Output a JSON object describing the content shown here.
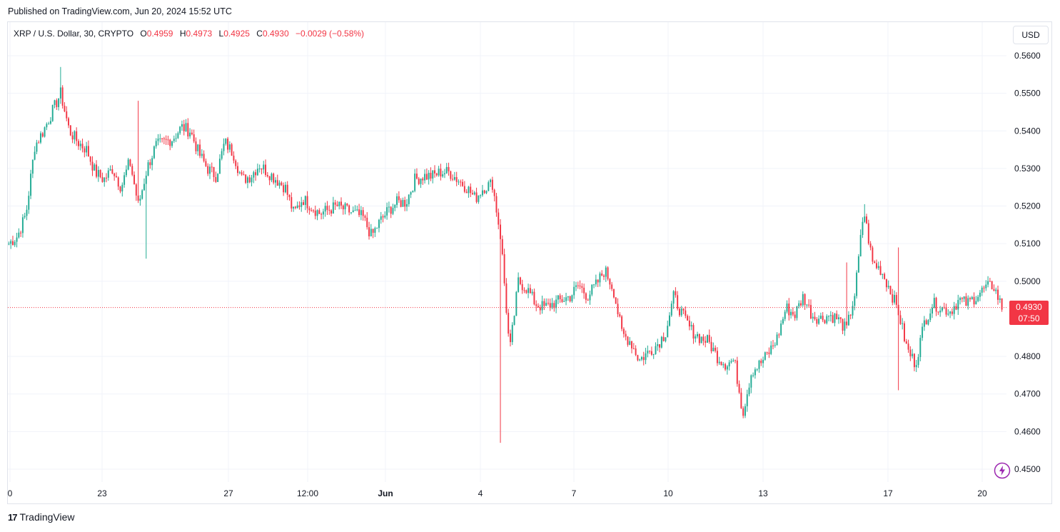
{
  "header": {
    "published": "Published on TradingView.com, Jun 20, 2024 15:52 UTC"
  },
  "legend": {
    "symbol": "XRP / U.S. Dollar, 30, CRYPTO",
    "o_label": "O",
    "o_value": "0.4959",
    "h_label": "H",
    "h_value": "0.4973",
    "l_label": "L",
    "l_value": "0.4925",
    "c_label": "C",
    "c_value": "0.4930",
    "change": "−0.0029 (−0.58%)"
  },
  "currency_button": "USD",
  "last_price": {
    "price": "0.4930",
    "countdown": "07:50"
  },
  "footer": {
    "brand": "TradingView",
    "mark": "17"
  },
  "colors": {
    "up": "#22ab94",
    "down": "#f23645",
    "grid": "#f0f3fa",
    "text": "#131722"
  },
  "icons": {
    "bolt": "lightning-bolt-icon",
    "logo": "tradingview-logo-icon"
  },
  "chart_data": {
    "type": "candlestick",
    "interval_minutes": 30,
    "ylim": [
      0.445,
      0.562
    ],
    "y_ticks": [
      "0.5600",
      "0.5500",
      "0.5400",
      "0.5300",
      "0.5200",
      "0.5100",
      "0.5000",
      "0.4800",
      "0.4700",
      "0.4600",
      "0.4500"
    ],
    "x_tick_labels": [
      "0",
      "23",
      "27",
      "12:00",
      "Jun",
      "4",
      "7",
      "10",
      "13",
      "17",
      "20"
    ],
    "grid": true,
    "last_price_line": 0.493,
    "close_path": [
      [
        "start",
        0.51
      ],
      [
        "t1",
        0.512
      ],
      [
        "t2",
        0.518
      ],
      [
        "t3",
        0.536
      ],
      [
        "t4",
        0.54
      ],
      [
        "t5",
        0.545
      ],
      [
        "t6",
        0.55
      ],
      [
        "t7",
        0.54
      ],
      [
        "t8",
        0.537
      ],
      [
        "t9",
        0.535
      ],
      [
        "t10",
        0.529
      ],
      [
        "t11",
        0.527
      ],
      [
        "t12",
        0.53
      ],
      [
        "t13",
        0.525
      ],
      [
        "t14",
        0.532
      ],
      [
        "t15",
        0.52
      ],
      [
        "t16",
        0.53
      ],
      [
        "t17",
        0.536
      ],
      [
        "t18",
        0.537
      ],
      [
        "t19",
        0.538
      ],
      [
        "t20",
        0.541
      ],
      [
        "t21",
        0.54
      ],
      [
        "t22",
        0.534
      ],
      [
        "t23",
        0.53
      ],
      [
        "t24",
        0.528
      ],
      [
        "t25",
        0.537
      ],
      [
        "t26",
        0.534
      ],
      [
        "t27",
        0.527
      ],
      [
        "t28",
        0.528
      ],
      [
        "t29",
        0.531
      ],
      [
        "t30",
        0.529
      ],
      [
        "t31",
        0.527
      ],
      [
        "t32",
        0.525
      ],
      [
        "t33",
        0.518
      ],
      [
        "t34",
        0.522
      ],
      [
        "t35",
        0.52
      ],
      [
        "t36",
        0.518
      ],
      [
        "t37",
        0.519
      ],
      [
        "t38",
        0.52
      ],
      [
        "t39",
        0.519
      ],
      [
        "t40",
        0.518
      ],
      [
        "t41",
        0.517
      ],
      [
        "t42",
        0.512
      ],
      [
        "t43",
        0.516
      ],
      [
        "t44",
        0.519
      ],
      [
        "t45",
        0.521
      ],
      [
        "t46",
        0.521
      ],
      [
        "t47",
        0.527
      ],
      [
        "t48",
        0.528
      ],
      [
        "t49",
        0.528
      ],
      [
        "t50",
        0.529
      ],
      [
        "t51",
        0.529
      ],
      [
        "t52",
        0.527
      ],
      [
        "t53",
        0.525
      ],
      [
        "t54",
        0.522
      ],
      [
        "t55",
        0.525
      ],
      [
        "t56",
        0.526
      ],
      [
        "t57",
        0.511
      ],
      [
        "t58",
        0.481
      ],
      [
        "t59",
        0.5
      ],
      [
        "t60",
        0.498
      ],
      [
        "t61",
        0.494
      ],
      [
        "t62",
        0.493
      ],
      [
        "t63",
        0.494
      ],
      [
        "t64",
        0.495
      ],
      [
        "t65",
        0.496
      ],
      [
        "t66",
        0.499
      ],
      [
        "t67",
        0.496
      ],
      [
        "t68",
        0.499
      ],
      [
        "t69",
        0.503
      ],
      [
        "t70",
        0.498
      ],
      [
        "t71",
        0.486
      ],
      [
        "t72",
        0.484
      ],
      [
        "t73",
        0.479
      ],
      [
        "t74",
        0.481
      ],
      [
        "t75",
        0.483
      ],
      [
        "t76",
        0.486
      ],
      [
        "t77",
        0.496
      ],
      [
        "t78",
        0.491
      ],
      [
        "t79",
        0.487
      ],
      [
        "t80",
        0.485
      ],
      [
        "t81",
        0.484
      ],
      [
        "t82",
        0.48
      ],
      [
        "t83",
        0.478
      ],
      [
        "t84",
        0.479
      ],
      [
        "t85",
        0.465
      ],
      [
        "t86",
        0.476
      ],
      [
        "t87",
        0.478
      ],
      [
        "t88",
        0.481
      ],
      [
        "t89",
        0.485
      ],
      [
        "t90",
        0.493
      ],
      [
        "t91",
        0.491
      ],
      [
        "t92",
        0.496
      ],
      [
        "t93",
        0.491
      ],
      [
        "t94",
        0.49
      ],
      [
        "t95",
        0.491
      ],
      [
        "t96",
        0.49
      ],
      [
        "t97",
        0.487
      ],
      [
        "t98",
        0.497
      ],
      [
        "t99",
        0.519
      ],
      [
        "t100",
        0.505
      ],
      [
        "t101",
        0.503
      ],
      [
        "t102",
        0.498
      ],
      [
        "t103",
        0.492
      ],
      [
        "t104",
        0.482
      ],
      [
        "t105",
        0.478
      ],
      [
        "t106",
        0.489
      ],
      [
        "t107",
        0.494
      ],
      [
        "t108",
        0.493
      ],
      [
        "t109",
        0.492
      ],
      [
        "t110",
        0.495
      ],
      [
        "t111",
        0.494
      ],
      [
        "t112",
        0.496
      ],
      [
        "t113",
        0.498
      ],
      [
        "t114",
        0.499
      ],
      [
        "t115",
        0.493
      ]
    ],
    "wick_spikes": [
      {
        "i": 6,
        "high": 0.557
      },
      {
        "i": 15,
        "high": 0.548
      },
      {
        "i": 16,
        "low": 0.506
      },
      {
        "i": 57,
        "low": 0.457
      },
      {
        "i": 97,
        "high": 0.505
      },
      {
        "i": 99,
        "high": 0.5205
      },
      {
        "i": 103,
        "low": 0.471
      },
      {
        "i": 103,
        "high": 0.509
      }
    ]
  }
}
